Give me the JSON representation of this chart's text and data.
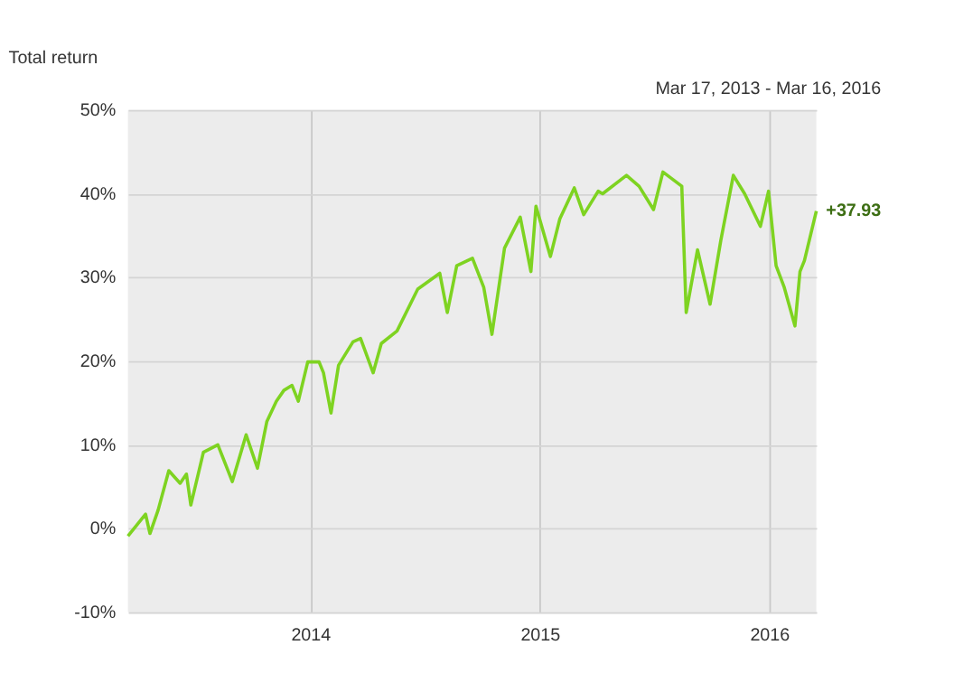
{
  "chart_data": {
    "type": "line",
    "title": "Total return",
    "annotations": [
      "Mar 17, 2013 - Mar 16, 2016",
      {
        "text": "+37.93",
        "x": "2016-03-16",
        "y": 37.93
      }
    ],
    "x": [
      "2013-03-17",
      "2013-04-14",
      "2013-04-21",
      "2013-05-04",
      "2013-05-21",
      "2013-06-08",
      "2013-06-18",
      "2013-06-25",
      "2013-07-15",
      "2013-08-07",
      "2013-08-30",
      "2013-09-21",
      "2013-10-09",
      "2013-10-24",
      "2013-11-08",
      "2013-11-20",
      "2013-12-03",
      "2013-12-13",
      "2013-12-28",
      "2014-01-15",
      "2014-01-22",
      "2014-02-03",
      "2014-02-15",
      "2014-03-10",
      "2014-03-22",
      "2014-04-11",
      "2014-04-24",
      "2014-05-19",
      "2014-06-21",
      "2014-07-26",
      "2014-08-07",
      "2014-08-22",
      "2014-09-16",
      "2014-10-04",
      "2014-10-17",
      "2014-11-06",
      "2014-12-01",
      "2014-12-18",
      "2014-12-26",
      "2015-01-18",
      "2015-02-02",
      "2015-02-25",
      "2015-03-12",
      "2015-04-04",
      "2015-04-11",
      "2015-05-19",
      "2015-06-08",
      "2015-07-01",
      "2015-07-16",
      "2015-08-15",
      "2015-08-22",
      "2015-09-09",
      "2015-09-29",
      "2015-10-16",
      "2015-11-05",
      "2015-11-23",
      "2015-12-18",
      "2015-12-31",
      "2016-01-12",
      "2016-01-25",
      "2016-02-11",
      "2016-02-19",
      "2016-02-26",
      "2016-03-16"
    ],
    "series": [
      {
        "color": "#7ed321",
        "values": [
          -0.9,
          1.7,
          -0.6,
          2.2,
          6.9,
          5.4,
          6.5,
          2.8,
          9.1,
          10.0,
          5.6,
          11.2,
          7.2,
          12.8,
          15.2,
          16.5,
          17.1,
          15.2,
          19.9,
          19.9,
          18.6,
          13.8,
          19.5,
          22.3,
          22.7,
          18.6,
          22.1,
          23.6,
          28.6,
          30.5,
          25.8,
          31.4,
          32.3,
          28.8,
          23.2,
          33.5,
          37.2,
          30.7,
          38.5,
          32.5,
          37.0,
          40.7,
          37.5,
          40.3,
          40.0,
          42.2,
          40.9,
          38.1,
          42.6,
          40.9,
          25.8,
          33.3,
          26.8,
          34.4,
          42.2,
          40.0,
          36.1,
          40.3,
          31.4,
          28.8,
          24.2,
          30.7,
          32.0,
          37.93
        ]
      }
    ],
    "xlim": [
      "2013-03-17",
      "2016-03-16"
    ],
    "xticks": [
      {
        "value": "2014-01-01",
        "label": "2014"
      },
      {
        "value": "2015-01-01",
        "label": "2015"
      },
      {
        "value": "2016-01-01",
        "label": "2016"
      }
    ],
    "ylim": [
      -10,
      50
    ],
    "yticks": [
      {
        "value": -10,
        "label": "-10%"
      },
      {
        "value": 0,
        "label": "0%"
      },
      {
        "value": 10,
        "label": "10%"
      },
      {
        "value": 20,
        "label": "20%"
      },
      {
        "value": 30,
        "label": "30%"
      },
      {
        "value": 40,
        "label": "40%"
      },
      {
        "value": 50,
        "label": "50%"
      }
    ],
    "grid": true,
    "marker": "none",
    "line_style": "solid"
  }
}
